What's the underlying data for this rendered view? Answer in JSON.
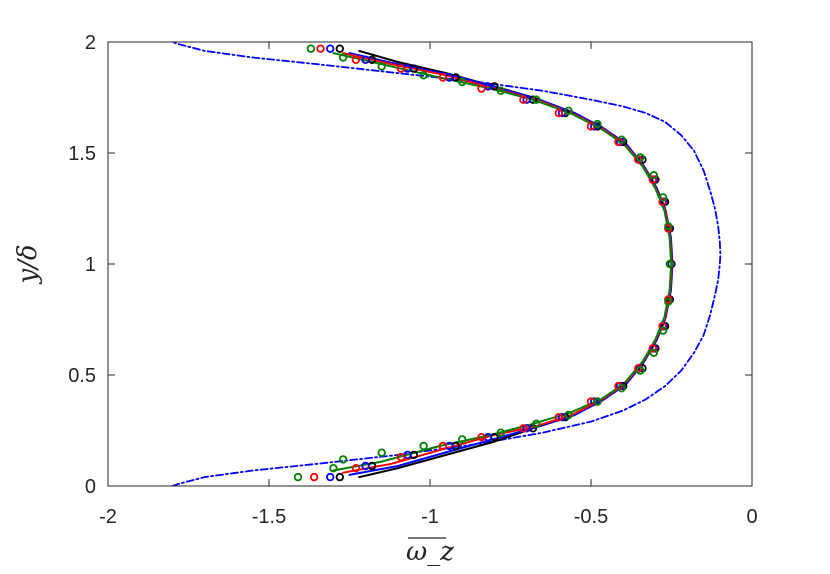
{
  "chart_data": {
    "type": "line",
    "xlabel": "ω_z",
    "ylabel": "y/δ",
    "xlim": [
      -2,
      0
    ],
    "ylim": [
      0,
      2
    ],
    "xticks": [
      "-2",
      "-1.5",
      "-1",
      "-0.5",
      "0"
    ],
    "yticks": [
      "0",
      "0.5",
      "1",
      "1.5",
      "2"
    ],
    "grid": false,
    "legend": "none",
    "series": [
      {
        "style": "dash-dot line",
        "color": "#0000ff",
        "x": [
          -1.8,
          -1.78,
          -1.7,
          -1.55,
          -1.35,
          -1.1,
          -0.85,
          -0.65,
          -0.5,
          -0.4,
          -0.33,
          -0.27,
          -0.22,
          -0.18,
          -0.15,
          -0.13,
          -0.115,
          -0.105,
          -0.1,
          -0.098,
          -0.1,
          -0.105,
          -0.115,
          -0.13,
          -0.15,
          -0.18,
          -0.22,
          -0.27,
          -0.33,
          -0.4,
          -0.5,
          -0.65,
          -0.85,
          -1.1,
          -1.35,
          -1.55,
          -1.7,
          -1.78,
          -1.8
        ],
        "y": [
          0.0,
          0.01,
          0.04,
          0.07,
          0.1,
          0.14,
          0.19,
          0.24,
          0.29,
          0.34,
          0.39,
          0.45,
          0.52,
          0.6,
          0.68,
          0.77,
          0.86,
          0.93,
          1.0,
          1.04,
          1.1,
          1.17,
          1.25,
          1.33,
          1.42,
          1.51,
          1.58,
          1.64,
          1.68,
          1.71,
          1.74,
          1.78,
          1.82,
          1.86,
          1.9,
          1.93,
          1.96,
          1.99,
          2.0
        ]
      },
      {
        "style": "solid line",
        "color": "#000000",
        "x": [
          -1.22,
          -1.1,
          -0.95,
          -0.8,
          -0.68,
          -0.57,
          -0.47,
          -0.4,
          -0.34,
          -0.3,
          -0.27,
          -0.255,
          -0.25,
          -0.255,
          -0.27,
          -0.3,
          -0.34,
          -0.4,
          -0.47,
          -0.57,
          -0.68,
          -0.8,
          -0.95,
          -1.1,
          -1.22
        ],
        "y": [
          0.04,
          0.08,
          0.14,
          0.2,
          0.26,
          0.31,
          0.38,
          0.45,
          0.55,
          0.65,
          0.75,
          0.88,
          1.0,
          1.12,
          1.25,
          1.35,
          1.45,
          1.55,
          1.62,
          1.69,
          1.75,
          1.8,
          1.86,
          1.91,
          1.96
        ]
      },
      {
        "style": "solid line",
        "color": "#0000ff",
        "x": [
          -1.25,
          -1.1,
          -0.93,
          -0.78,
          -0.66,
          -0.55,
          -0.46,
          -0.39,
          -0.335,
          -0.295,
          -0.268,
          -0.252,
          -0.247,
          -0.252,
          -0.268,
          -0.295,
          -0.335,
          -0.39,
          -0.46,
          -0.55,
          -0.66,
          -0.78,
          -0.93,
          -1.1,
          -1.25
        ],
        "y": [
          0.05,
          0.09,
          0.16,
          0.22,
          0.27,
          0.32,
          0.39,
          0.46,
          0.56,
          0.66,
          0.76,
          0.88,
          1.0,
          1.12,
          1.24,
          1.34,
          1.44,
          1.54,
          1.61,
          1.68,
          1.74,
          1.79,
          1.85,
          1.9,
          1.95
        ]
      },
      {
        "style": "solid line",
        "color": "#ff0000",
        "x": [
          -1.27,
          -1.12,
          -0.95,
          -0.8,
          -0.67,
          -0.56,
          -0.465,
          -0.395,
          -0.338,
          -0.298,
          -0.27,
          -0.254,
          -0.249,
          -0.254,
          -0.27,
          -0.298,
          -0.338,
          -0.395,
          -0.465,
          -0.56,
          -0.67,
          -0.8,
          -0.95,
          -1.12,
          -1.27
        ],
        "y": [
          0.06,
          0.1,
          0.17,
          0.23,
          0.27,
          0.32,
          0.39,
          0.46,
          0.56,
          0.66,
          0.76,
          0.88,
          1.0,
          1.12,
          1.24,
          1.34,
          1.44,
          1.54,
          1.61,
          1.68,
          1.74,
          1.79,
          1.85,
          1.9,
          1.95
        ]
      },
      {
        "style": "solid line",
        "color": "#008000",
        "x": [
          -1.3,
          -1.15,
          -0.97,
          -0.81,
          -0.68,
          -0.565,
          -0.47,
          -0.398,
          -0.34,
          -0.3,
          -0.272,
          -0.256,
          -0.251,
          -0.256,
          -0.272,
          -0.3,
          -0.34,
          -0.398,
          -0.47,
          -0.565,
          -0.68,
          -0.81,
          -0.97,
          -1.15,
          -1.3
        ],
        "y": [
          0.07,
          0.11,
          0.18,
          0.23,
          0.28,
          0.33,
          0.39,
          0.46,
          0.56,
          0.66,
          0.76,
          0.88,
          1.0,
          1.12,
          1.24,
          1.34,
          1.44,
          1.54,
          1.61,
          1.68,
          1.74,
          1.79,
          1.84,
          1.9,
          1.95
        ]
      },
      {
        "style": "circles",
        "color": "#000000",
        "x": [
          -1.28,
          -1.18,
          -1.05,
          -0.92,
          -0.8,
          -0.68,
          -0.58,
          -0.48,
          -0.4,
          -0.34,
          -0.3,
          -0.27,
          -0.255,
          -0.25,
          -0.255,
          -0.27,
          -0.3,
          -0.34,
          -0.4,
          -0.48,
          -0.58,
          -0.68,
          -0.8,
          -0.92,
          -1.05,
          -1.18,
          -1.28
        ],
        "y": [
          0.04,
          0.09,
          0.14,
          0.18,
          0.22,
          0.26,
          0.31,
          0.38,
          0.45,
          0.53,
          0.62,
          0.72,
          0.84,
          1.0,
          1.16,
          1.28,
          1.38,
          1.47,
          1.55,
          1.62,
          1.68,
          1.74,
          1.8,
          1.84,
          1.88,
          1.92,
          1.97
        ]
      },
      {
        "style": "circles",
        "color": "#0000ff",
        "x": [
          -1.31,
          -1.2,
          -1.07,
          -0.94,
          -0.82,
          -0.7,
          -0.59,
          -0.49,
          -0.41,
          -0.35,
          -0.305,
          -0.275,
          -0.258,
          -0.252,
          -0.258,
          -0.275,
          -0.305,
          -0.35,
          -0.41,
          -0.49,
          -0.59,
          -0.7,
          -0.82,
          -0.94,
          -1.07,
          -1.2,
          -1.31
        ],
        "y": [
          0.04,
          0.09,
          0.14,
          0.18,
          0.22,
          0.26,
          0.31,
          0.38,
          0.45,
          0.53,
          0.62,
          0.72,
          0.84,
          1.0,
          1.16,
          1.28,
          1.38,
          1.47,
          1.55,
          1.62,
          1.68,
          1.74,
          1.8,
          1.84,
          1.88,
          1.92,
          1.97
        ]
      },
      {
        "style": "circles",
        "color": "#ff0000",
        "x": [
          -1.36,
          -1.23,
          -1.09,
          -0.96,
          -0.84,
          -0.71,
          -0.6,
          -0.5,
          -0.415,
          -0.353,
          -0.308,
          -0.278,
          -0.26,
          -0.254,
          -0.26,
          -0.278,
          -0.308,
          -0.353,
          -0.415,
          -0.5,
          -0.6,
          -0.71,
          -0.84,
          -0.96,
          -1.09,
          -1.23,
          -1.34
        ],
        "y": [
          0.04,
          0.08,
          0.13,
          0.18,
          0.22,
          0.26,
          0.31,
          0.38,
          0.45,
          0.53,
          0.62,
          0.72,
          0.84,
          1.0,
          1.16,
          1.28,
          1.38,
          1.47,
          1.55,
          1.62,
          1.68,
          1.74,
          1.79,
          1.84,
          1.88,
          1.92,
          1.97
        ]
      },
      {
        "style": "circles",
        "color": "#008000",
        "x": [
          -1.41,
          -1.3,
          -1.27,
          -1.15,
          -1.02,
          -0.9,
          -0.78,
          -0.67,
          -0.57,
          -0.48,
          -0.405,
          -0.347,
          -0.305,
          -0.276,
          -0.26,
          -0.255,
          -0.26,
          -0.276,
          -0.305,
          -0.347,
          -0.405,
          -0.48,
          -0.57,
          -0.67,
          -0.78,
          -0.9,
          -1.02,
          -1.15,
          -1.27,
          -1.37
        ],
        "y": [
          0.04,
          0.08,
          0.12,
          0.15,
          0.18,
          0.21,
          0.24,
          0.28,
          0.32,
          0.38,
          0.44,
          0.52,
          0.6,
          0.7,
          0.83,
          1.0,
          1.17,
          1.3,
          1.4,
          1.48,
          1.56,
          1.63,
          1.69,
          1.74,
          1.78,
          1.82,
          1.85,
          1.89,
          1.93,
          1.97
        ]
      }
    ]
  }
}
